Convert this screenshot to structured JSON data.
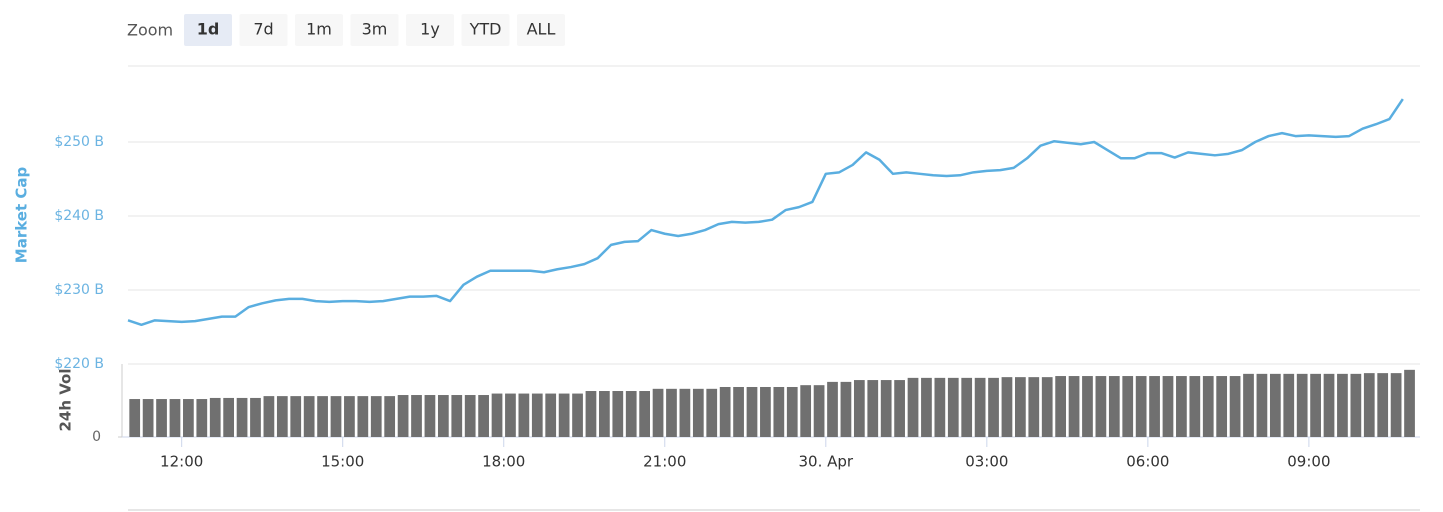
{
  "range_selector": {
    "label": "Zoom",
    "buttons": [
      "1d",
      "7d",
      "1m",
      "3m",
      "1y",
      "YTD",
      "ALL"
    ],
    "selected": 0
  },
  "chart_data": [
    {
      "type": "line",
      "y_label": "Market Cap",
      "color": "#5aaee0",
      "x": [
        11,
        11.25,
        11.5,
        11.75,
        12,
        12.25,
        12.5,
        12.75,
        13,
        13.25,
        13.5,
        13.75,
        14,
        14.25,
        14.5,
        14.75,
        15,
        15.25,
        15.5,
        15.75,
        16,
        16.25,
        16.5,
        16.75,
        17,
        17.25,
        17.5,
        17.75,
        18,
        18.25,
        18.5,
        18.75,
        19,
        19.25,
        19.5,
        19.75,
        20,
        20.25,
        20.5,
        20.75,
        21,
        21.25,
        21.5,
        21.75,
        22,
        22.25,
        22.5,
        22.75,
        23,
        23.25,
        23.5,
        23.75,
        24,
        24.25,
        24.5,
        24.75,
        25,
        25.25,
        25.5,
        25.75,
        26,
        26.25,
        26.5,
        26.75,
        27,
        27.25,
        27.5,
        27.75,
        28,
        28.25,
        28.5,
        28.75,
        29,
        29.25,
        29.5,
        29.75,
        30,
        30.25,
        30.5,
        30.75,
        31,
        31.25,
        31.5,
        31.75,
        32,
        32.25,
        32.5,
        32.75,
        33,
        33.25,
        33.5,
        33.75,
        34,
        34.25,
        34.5,
        34.75
      ],
      "values": [
        225.9,
        225.3,
        225.9,
        225.8,
        225.7,
        225.8,
        226.1,
        226.4,
        226.4,
        227.7,
        228.2,
        228.6,
        228.8,
        228.8,
        228.5,
        228.4,
        228.5,
        228.5,
        228.4,
        228.5,
        228.8,
        229.1,
        229.1,
        229.2,
        228.5,
        230.7,
        231.8,
        232.6,
        232.6,
        232.6,
        232.6,
        232.4,
        232.8,
        233.1,
        233.5,
        234.3,
        236.1,
        236.5,
        236.6,
        238.1,
        237.6,
        237.3,
        237.6,
        238.1,
        238.9,
        239.2,
        239.1,
        239.2,
        239.5,
        240.8,
        241.2,
        241.9,
        245.7,
        245.9,
        246.9,
        248.6,
        247.6,
        245.7,
        245.9,
        245.7,
        245.5,
        245.4,
        245.5,
        245.9,
        246.1,
        246.2,
        246.5,
        247.8,
        249.5,
        250.1,
        249.9,
        249.7,
        250.0,
        248.9,
        247.8,
        247.8,
        248.5,
        248.5,
        247.9,
        248.6,
        248.4,
        248.2,
        248.4,
        248.9,
        250.0,
        250.8,
        251.2,
        250.8,
        250.9,
        250.8,
        250.7,
        250.8,
        251.8,
        252.4,
        253.1,
        255.8
      ],
      "xlim": [
        11,
        35.07
      ],
      "ylim": [
        220,
        260.27
      ],
      "yticks": [
        {
          "value": 220,
          "label": "$220 B"
        },
        {
          "value": 230,
          "label": "$230 B"
        },
        {
          "value": 240,
          "label": "$240 B"
        },
        {
          "value": 250,
          "label": "$250 B"
        }
      ],
      "grid": true
    },
    {
      "type": "bar",
      "y_label": "24h Vol",
      "color": "#707070",
      "x": [
        11,
        11.25,
        11.5,
        11.75,
        12,
        12.25,
        12.5,
        12.75,
        13,
        13.25,
        13.5,
        13.75,
        14,
        14.25,
        14.5,
        14.75,
        15,
        15.25,
        15.5,
        15.75,
        16,
        16.25,
        16.5,
        16.75,
        17,
        17.25,
        17.5,
        17.75,
        18,
        18.25,
        18.5,
        18.75,
        19,
        19.25,
        19.5,
        19.75,
        20,
        20.25,
        20.5,
        20.75,
        21,
        21.25,
        21.5,
        21.75,
        22,
        22.25,
        22.5,
        22.75,
        23,
        23.25,
        23.5,
        23.75,
        24,
        24.25,
        24.5,
        24.75,
        25,
        25.25,
        25.5,
        25.75,
        26,
        26.25,
        26.5,
        26.75,
        27,
        27.25,
        27.5,
        27.75,
        28,
        28.25,
        28.5,
        28.75,
        29,
        29.25,
        29.5,
        29.75,
        30,
        30.25,
        30.5,
        30.75,
        31,
        31.25,
        31.5,
        31.75,
        32,
        32.25,
        32.5,
        32.75,
        33,
        33.25,
        33.5,
        33.75,
        34,
        34.25,
        34.5,
        34.75
      ],
      "values": [
        10.4,
        10.4,
        10.4,
        10.4,
        10.4,
        10.4,
        10.7,
        10.7,
        10.7,
        10.7,
        11.2,
        11.2,
        11.2,
        11.2,
        11.2,
        11.2,
        11.2,
        11.2,
        11.2,
        11.2,
        11.5,
        11.5,
        11.5,
        11.5,
        11.5,
        11.5,
        11.5,
        11.9,
        11.9,
        11.9,
        11.9,
        11.9,
        11.9,
        11.9,
        12.6,
        12.6,
        12.6,
        12.6,
        12.6,
        13.2,
        13.2,
        13.2,
        13.2,
        13.2,
        13.7,
        13.7,
        13.7,
        13.7,
        13.7,
        13.7,
        14.2,
        14.2,
        15.1,
        15.1,
        15.6,
        15.6,
        15.6,
        15.6,
        16.2,
        16.2,
        16.2,
        16.2,
        16.2,
        16.2,
        16.2,
        16.4,
        16.4,
        16.4,
        16.4,
        16.7,
        16.7,
        16.7,
        16.7,
        16.7,
        16.7,
        16.7,
        16.7,
        16.7,
        16.7,
        16.7,
        16.7,
        16.7,
        16.7,
        17.3,
        17.3,
        17.3,
        17.3,
        17.3,
        17.3,
        17.3,
        17.3,
        17.3,
        17.5,
        17.5,
        17.5,
        18.4
      ],
      "xlim": [
        11,
        35.07
      ],
      "ylim": [
        0,
        20
      ],
      "yticks": [
        0
      ],
      "xticks": [
        {
          "value": 12,
          "label": "12:00"
        },
        {
          "value": 15,
          "label": "15:00"
        },
        {
          "value": 18,
          "label": "18:00"
        },
        {
          "value": 21,
          "label": "21:00"
        },
        {
          "value": 24,
          "label": "30. Apr"
        },
        {
          "value": 27,
          "label": "03:00"
        },
        {
          "value": 30,
          "label": "06:00"
        },
        {
          "value": 33,
          "label": "09:00"
        }
      ]
    }
  ]
}
